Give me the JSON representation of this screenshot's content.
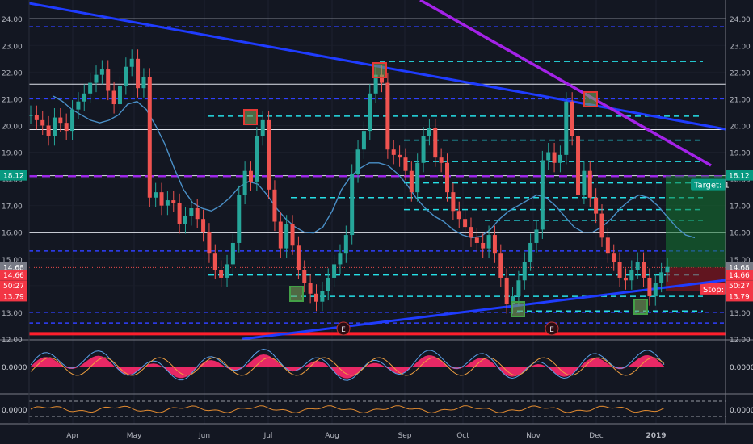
{
  "chart_data": {
    "type": "candlestick",
    "title": "",
    "x_months": [
      "Apr",
      "May",
      "Jun",
      "Jul",
      "Aug",
      "Sep",
      "Oct",
      "Nov",
      "Dec",
      "2019"
    ],
    "y_ticks": [
      12.0,
      13.0,
      14.0,
      15.0,
      16.0,
      17.0,
      18.0,
      19.0,
      20.0,
      21.0,
      22.0,
      23.0,
      24.0
    ],
    "ylim": [
      12.0,
      24.4
    ],
    "left_axis_labels": [
      "12.00",
      "13.00",
      "14.00",
      "15.00",
      "16.00",
      "17.00",
      "18.00",
      "19.00",
      "20.00",
      "21.00",
      "22.00",
      "23.00",
      "24.00"
    ],
    "right_axis_labels": [
      "12.00",
      "13.00",
      "14.00",
      "15.00",
      "16.00",
      "17.00",
      "18.00",
      "19.00",
      "20.00",
      "21.00",
      "22.00",
      "23.00",
      "24.00"
    ],
    "price_badges": [
      {
        "side": "left",
        "text": "18.12",
        "price": 18.12,
        "color": "#089981"
      },
      {
        "side": "left",
        "text": "14.68",
        "price": 14.68,
        "color": "#787b86"
      },
      {
        "side": "left",
        "text": "14.66",
        "price": 14.39,
        "color": "#f23645"
      },
      {
        "side": "left",
        "text": "50:27",
        "price": 13.99,
        "color": "#f23645"
      },
      {
        "side": "left",
        "text": "13.79",
        "price": 13.59,
        "color": "#f23645"
      },
      {
        "side": "right",
        "text": "18.12",
        "price": 18.12,
        "color": "#089981"
      },
      {
        "side": "right",
        "text": "14.68",
        "price": 14.68,
        "color": "#787b86"
      },
      {
        "side": "right",
        "text": "14.66",
        "price": 14.39,
        "color": "#f23645"
      },
      {
        "side": "right",
        "text": "50:27",
        "price": 13.99,
        "color": "#f23645"
      },
      {
        "side": "right",
        "text": "13.79",
        "price": 13.59,
        "color": "#f23645"
      }
    ],
    "target_label": "Target: 1",
    "stop_label": "Stop:",
    "position": {
      "entry": 14.68,
      "target": 18.12,
      "stop": 13.79
    },
    "earnings_markers": [
      "E",
      "E"
    ],
    "white_horizontal_levels": [
      24.0,
      21.55,
      19.85,
      18.12,
      15.98
    ],
    "blue_dashed_levels": [
      23.7,
      21.0,
      15.3,
      13.0,
      12.6
    ],
    "purple_dashed_level": 18.1,
    "red_support_level": 12.2,
    "cyan_dashed_levels": [
      {
        "price": 22.4,
        "from": "Aug"
      },
      {
        "price": 20.35,
        "from": "Jun"
      },
      {
        "price": 19.45,
        "from": "Sep"
      },
      {
        "price": 18.65,
        "from": "Sep"
      },
      {
        "price": 17.85,
        "from": "Sep"
      },
      {
        "price": 17.3,
        "from": "Jul"
      },
      {
        "price": 16.85,
        "from": "Sep"
      },
      {
        "price": 16.45,
        "from": "Oct"
      },
      {
        "price": 14.4,
        "from": "Jun"
      },
      {
        "price": 13.6,
        "from": "Jul"
      },
      {
        "price": 13.05,
        "from": "Nov"
      }
    ],
    "close_series": [
      20.4,
      20.2,
      20.0,
      19.6,
      20.3,
      20.1,
      19.8,
      20.6,
      20.9,
      21.2,
      21.6,
      21.9,
      22.1,
      21.3,
      20.8,
      21.5,
      22.2,
      22.5,
      21.4,
      21.8,
      17.3,
      17.5,
      17.0,
      17.2,
      17.1,
      16.3,
      16.6,
      16.9,
      16.5,
      16.0,
      15.2,
      14.6,
      14.3,
      14.8,
      15.6,
      17.4,
      18.3,
      17.9,
      19.6,
      20.2,
      17.6,
      16.4,
      15.4,
      16.3,
      15.5,
      14.6,
      14.1,
      13.7,
      13.4,
      13.8,
      14.3,
      14.8,
      15.2,
      15.9,
      18.2,
      19.1,
      19.8,
      21.2,
      21.9,
      21.6,
      19.1,
      18.9,
      18.8,
      18.3,
      17.5,
      18.6,
      19.6,
      19.9,
      18.8,
      18.6,
      17.5,
      16.8,
      16.5,
      16.2,
      15.8,
      15.6,
      15.4,
      15.9,
      15.2,
      14.3,
      13.3,
      13.6,
      14.2,
      14.9,
      15.6,
      16.1,
      18.7,
      19.0,
      18.6,
      18.9,
      20.9,
      19.6,
      17.4,
      18.3,
      17.3,
      16.7,
      15.8,
      15.2,
      14.9,
      14.3,
      14.2,
      14.6,
      14.9,
      14.3,
      13.6,
      14.1,
      14.5,
      14.7
    ],
    "ma_series": [
      21.1,
      20.9,
      20.6,
      20.4,
      20.2,
      20.1,
      20.2,
      20.4,
      20.8,
      20.9,
      20.6,
      20.0,
      19.3,
      18.4,
      17.6,
      17.1,
      16.9,
      16.8,
      17.0,
      17.3,
      17.7,
      17.9,
      17.8,
      17.4,
      16.9,
      16.5,
      16.2,
      16.0,
      15.97,
      16.2,
      16.8,
      17.6,
      18.1,
      18.4,
      18.6,
      18.6,
      18.5,
      18.2,
      17.8,
      17.3,
      16.9,
      16.6,
      16.4,
      16.1,
      15.9,
      15.8,
      15.85,
      16.1,
      16.5,
      16.8,
      17.0,
      17.2,
      17.4,
      17.3,
      17.0,
      16.6,
      16.2,
      16.0,
      16.0,
      16.2,
      16.5,
      16.9,
      17.2,
      17.4,
      17.3,
      17.0,
      16.6,
      16.2,
      15.9,
      15.8
    ],
    "macd_label": "0.0000",
    "osc_label": "0.0000"
  }
}
